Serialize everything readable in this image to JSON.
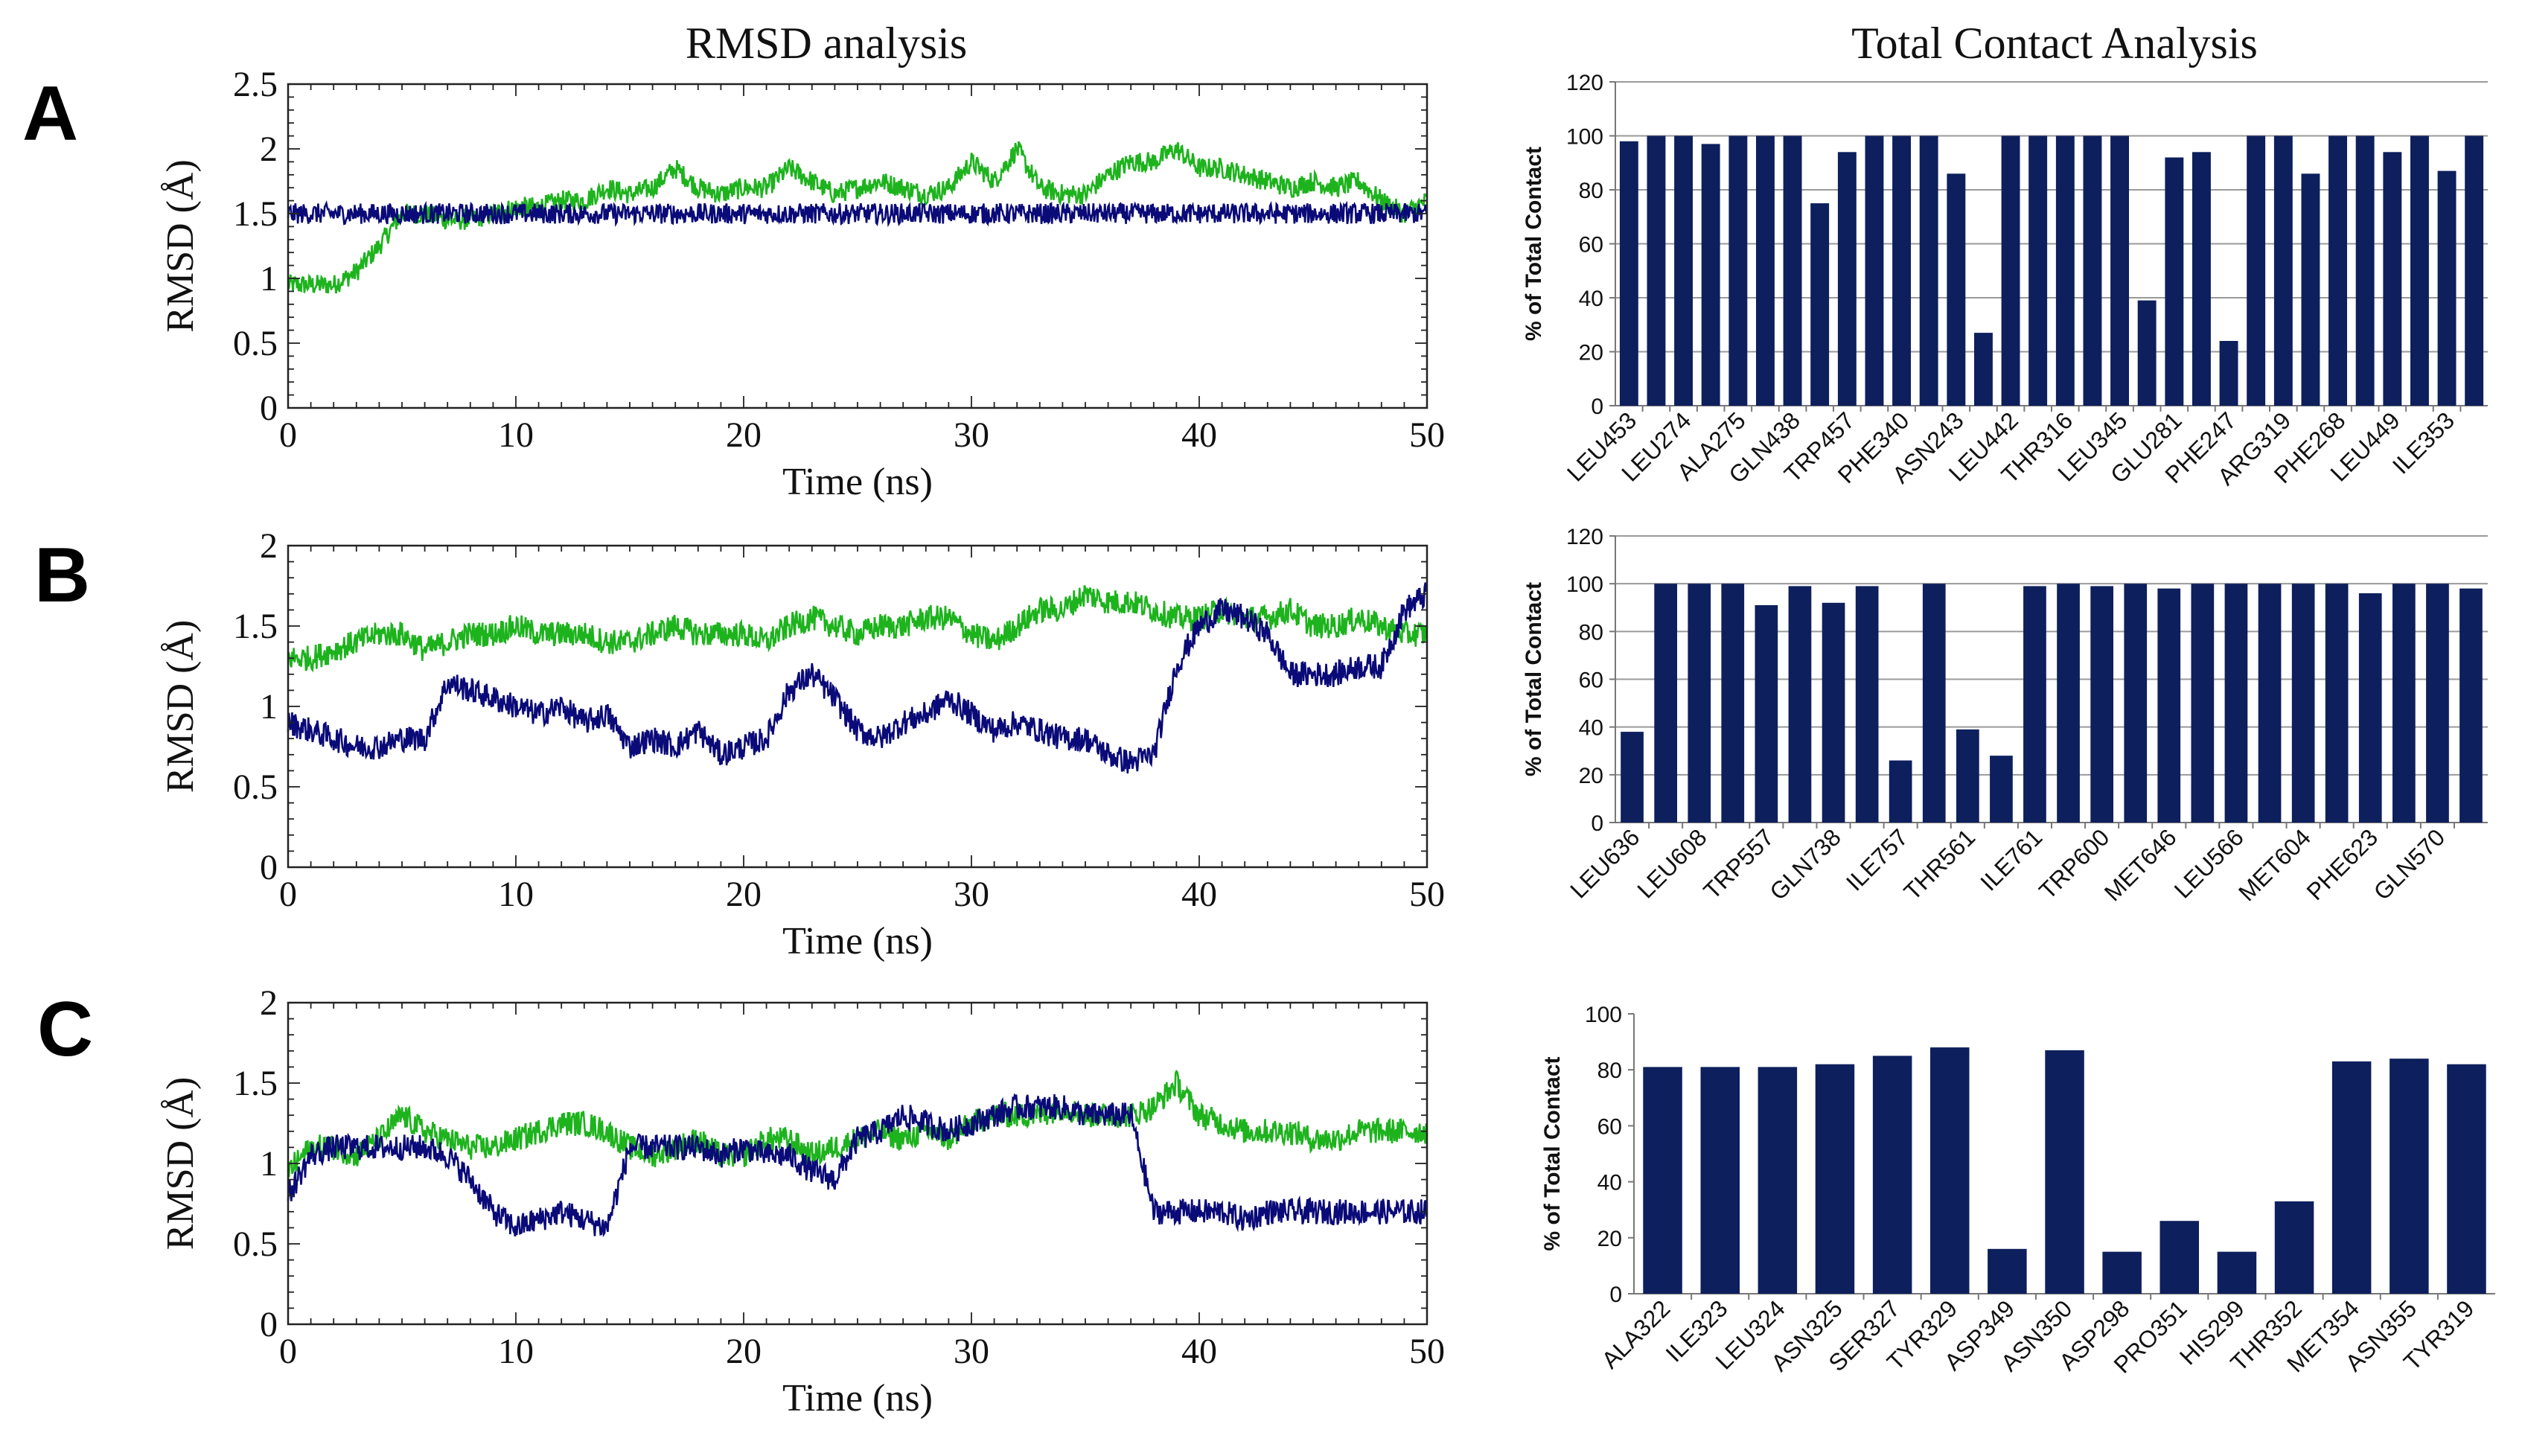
{
  "column_titles": {
    "left": "RMSD analysis",
    "right": "Total Contact Analysis"
  },
  "panel_labels": [
    "A",
    "B",
    "C"
  ],
  "colors": {
    "green_series": "#1db31d",
    "blue_series": "#0a0a78",
    "bar_fill": "#0d1f5c"
  },
  "chart_data": [
    {
      "id": "A-rmsd",
      "type": "line",
      "title": "",
      "xlabel": "Time (ns)",
      "ylabel": "RMSD (Å)",
      "xlim": [
        0,
        50
      ],
      "ylim": [
        0,
        2.5
      ],
      "xticks": [
        0,
        10,
        20,
        30,
        40,
        50
      ],
      "yticks": [
        0,
        0.5,
        1,
        1.5,
        2,
        2.5
      ],
      "ytick_labels": [
        "0",
        "0.5",
        "1",
        "1.5",
        "2",
        "2.5"
      ],
      "grid": false,
      "series": [
        {
          "color": "#1db31d",
          "x": [
            0,
            1,
            2,
            3,
            4,
            5,
            6,
            7,
            8,
            9,
            10,
            11,
            12,
            13,
            14,
            15,
            16,
            17,
            18,
            19,
            20,
            21,
            22,
            23,
            24,
            25,
            26,
            27,
            28,
            29,
            30,
            31,
            32,
            33,
            34,
            35,
            36,
            37,
            38,
            39,
            40,
            41,
            42,
            43,
            44,
            45,
            46,
            47,
            48,
            49,
            50
          ],
          "y": [
            0.95,
            0.95,
            0.95,
            1.05,
            1.25,
            1.5,
            1.5,
            1.45,
            1.45,
            1.5,
            1.55,
            1.55,
            1.6,
            1.6,
            1.7,
            1.65,
            1.7,
            1.85,
            1.7,
            1.65,
            1.7,
            1.7,
            1.85,
            1.75,
            1.65,
            1.7,
            1.75,
            1.7,
            1.65,
            1.7,
            1.9,
            1.75,
            2.0,
            1.7,
            1.65,
            1.65,
            1.8,
            1.9,
            1.9,
            2.0,
            1.85,
            1.85,
            1.8,
            1.75,
            1.7,
            1.75,
            1.7,
            1.75,
            1.6,
            1.5,
            1.6
          ]
        },
        {
          "color": "#0a0a78",
          "x": [
            0,
            1,
            2,
            3,
            4,
            5,
            6,
            7,
            8,
            9,
            10,
            11,
            12,
            13,
            14,
            15,
            16,
            17,
            18,
            19,
            20,
            21,
            22,
            23,
            24,
            25,
            26,
            27,
            28,
            29,
            30,
            31,
            32,
            33,
            34,
            35,
            36,
            37,
            38,
            39,
            40,
            41,
            42,
            43,
            44,
            45,
            46,
            47,
            48,
            49,
            50
          ],
          "y": [
            1.5,
            1.5,
            1.5,
            1.5,
            1.5,
            1.5,
            1.5,
            1.5,
            1.5,
            1.5,
            1.5,
            1.5,
            1.5,
            1.5,
            1.5,
            1.5,
            1.5,
            1.5,
            1.5,
            1.5,
            1.5,
            1.5,
            1.5,
            1.5,
            1.5,
            1.5,
            1.5,
            1.5,
            1.5,
            1.5,
            1.5,
            1.5,
            1.5,
            1.5,
            1.5,
            1.5,
            1.5,
            1.5,
            1.5,
            1.5,
            1.5,
            1.5,
            1.5,
            1.5,
            1.5,
            1.5,
            1.5,
            1.5,
            1.5,
            1.5,
            1.5
          ]
        }
      ]
    },
    {
      "id": "A-contact",
      "type": "bar",
      "title": "",
      "xlabel": "",
      "ylabel": "% of Total Contact",
      "ylim": [
        0,
        120
      ],
      "yticks": [
        0,
        20,
        40,
        60,
        80,
        100,
        120
      ],
      "grid": true,
      "categories": [
        "LEU453",
        "",
        "LEU274",
        "",
        "ALA275",
        "",
        "GLN438",
        "",
        "TRP457",
        "",
        "PHE340",
        "",
        "ASN243",
        "",
        "LEU442",
        "",
        "THR316",
        "",
        "LEU345",
        "",
        "GLU281",
        "",
        "PHE247",
        "",
        "ARG319",
        "",
        "PHE268",
        "",
        "LEU449",
        "",
        "ILE353",
        ""
      ],
      "values": [
        98,
        100,
        100,
        97,
        100,
        100,
        100,
        75,
        94,
        100,
        100,
        100,
        86,
        27,
        100,
        100,
        100,
        100,
        100,
        39,
        92,
        94,
        24,
        100,
        100,
        86,
        100,
        100,
        94,
        100,
        87,
        100
      ]
    },
    {
      "id": "B-rmsd",
      "type": "line",
      "title": "",
      "xlabel": "Time (ns)",
      "ylabel": "RMSD (Å)",
      "xlim": [
        0,
        50
      ],
      "ylim": [
        0,
        2
      ],
      "xticks": [
        0,
        10,
        20,
        30,
        40,
        50
      ],
      "yticks": [
        0,
        0.5,
        1,
        1.5,
        2
      ],
      "ytick_labels": [
        "0",
        "0.5",
        "1",
        "1.5",
        "2"
      ],
      "grid": false,
      "series": [
        {
          "color": "#1db31d",
          "x": [
            0,
            1,
            2,
            3,
            4,
            5,
            6,
            7,
            8,
            9,
            10,
            11,
            12,
            13,
            14,
            15,
            16,
            17,
            18,
            19,
            20,
            21,
            22,
            23,
            24,
            25,
            26,
            27,
            28,
            29,
            30,
            31,
            32,
            33,
            34,
            35,
            36,
            37,
            38,
            39,
            40,
            41,
            42,
            43,
            44,
            45,
            46,
            47,
            48,
            49,
            50
          ],
          "y": [
            1.3,
            1.3,
            1.35,
            1.4,
            1.45,
            1.45,
            1.35,
            1.4,
            1.45,
            1.45,
            1.5,
            1.45,
            1.45,
            1.45,
            1.4,
            1.4,
            1.45,
            1.5,
            1.45,
            1.45,
            1.45,
            1.4,
            1.5,
            1.55,
            1.5,
            1.45,
            1.5,
            1.5,
            1.55,
            1.55,
            1.45,
            1.4,
            1.5,
            1.6,
            1.6,
            1.7,
            1.65,
            1.65,
            1.6,
            1.55,
            1.55,
            1.6,
            1.55,
            1.55,
            1.6,
            1.5,
            1.5,
            1.55,
            1.5,
            1.45,
            1.45
          ]
        },
        {
          "color": "#0a0a78",
          "x": [
            0,
            1,
            2,
            3,
            4,
            5,
            6,
            7,
            8,
            9,
            10,
            11,
            12,
            13,
            14,
            15,
            16,
            17,
            18,
            19,
            20,
            21,
            22,
            23,
            24,
            25,
            26,
            27,
            28,
            29,
            30,
            31,
            32,
            33,
            34,
            35,
            36,
            37,
            38,
            39,
            40,
            41,
            42,
            43,
            44,
            45,
            46,
            47,
            48,
            49,
            50
          ],
          "y": [
            0.9,
            0.85,
            0.8,
            0.75,
            0.75,
            0.8,
            0.8,
            1.15,
            1.1,
            1.05,
            1.0,
            0.95,
            1.0,
            0.9,
            0.95,
            0.75,
            0.8,
            0.75,
            0.85,
            0.7,
            0.75,
            0.8,
            1.1,
            1.2,
            1.05,
            0.85,
            0.8,
            0.9,
            0.95,
            1.05,
            0.95,
            0.85,
            0.9,
            0.85,
            0.8,
            0.8,
            0.7,
            0.65,
            0.7,
            1.25,
            1.5,
            1.6,
            1.55,
            1.45,
            1.2,
            1.2,
            1.2,
            1.25,
            1.25,
            1.6,
            1.7
          ]
        }
      ]
    },
    {
      "id": "B-contact",
      "type": "bar",
      "title": "",
      "xlabel": "",
      "ylabel": "% of Total Contact",
      "ylim": [
        0,
        120
      ],
      "yticks": [
        0,
        20,
        40,
        60,
        80,
        100,
        120
      ],
      "grid": true,
      "categories": [
        "LEU636",
        "",
        "LEU608",
        "",
        "TRP557",
        "",
        "GLN738",
        "",
        "ILE757",
        "",
        "THR561",
        "",
        "ILE761",
        "",
        "TRP600",
        "",
        "MET646",
        "",
        "LEU566",
        "",
        "MET604",
        "",
        "PHE623",
        "",
        "GLN570",
        ""
      ],
      "values": [
        38,
        100,
        100,
        100,
        91,
        99,
        92,
        99,
        26,
        100,
        39,
        28,
        99,
        100,
        99,
        100,
        98,
        100,
        100,
        100,
        100,
        100,
        96,
        100,
        100,
        98
      ]
    },
    {
      "id": "C-rmsd",
      "type": "line",
      "title": "",
      "xlabel": "Time (ns)",
      "ylabel": "RMSD (Å)",
      "xlim": [
        0,
        50
      ],
      "ylim": [
        0,
        2
      ],
      "xticks": [
        0,
        10,
        20,
        30,
        40,
        50
      ],
      "yticks": [
        0,
        0.5,
        1,
        1.5,
        2
      ],
      "ytick_labels": [
        "0",
        "0.5",
        "1",
        "1.5",
        "2"
      ],
      "grid": false,
      "series": [
        {
          "color": "#1db31d",
          "x": [
            0,
            1,
            2,
            3,
            4,
            5,
            6,
            7,
            8,
            9,
            10,
            11,
            12,
            13,
            14,
            15,
            16,
            17,
            18,
            19,
            20,
            21,
            22,
            23,
            24,
            25,
            26,
            27,
            28,
            29,
            30,
            31,
            32,
            33,
            34,
            35,
            36,
            37,
            38,
            39,
            40,
            41,
            42,
            43,
            44,
            45,
            46,
            47,
            48,
            49,
            50
          ],
          "y": [
            0.95,
            1.1,
            1.1,
            1.05,
            1.15,
            1.3,
            1.2,
            1.15,
            1.1,
            1.1,
            1.15,
            1.2,
            1.25,
            1.25,
            1.2,
            1.1,
            1.05,
            1.1,
            1.15,
            1.05,
            1.05,
            1.15,
            1.15,
            1.05,
            1.1,
            1.15,
            1.2,
            1.15,
            1.2,
            1.15,
            1.25,
            1.3,
            1.3,
            1.3,
            1.35,
            1.3,
            1.3,
            1.3,
            1.35,
            1.5,
            1.3,
            1.25,
            1.2,
            1.2,
            1.2,
            1.15,
            1.15,
            1.2,
            1.2,
            1.2,
            1.2
          ]
        },
        {
          "color": "#0a0a78",
          "x": [
            0,
            1,
            2,
            3,
            4,
            5,
            6,
            7,
            8,
            9,
            10,
            11,
            12,
            13,
            14,
            15,
            16,
            17,
            18,
            19,
            20,
            21,
            22,
            23,
            24,
            25,
            26,
            27,
            28,
            29,
            30,
            31,
            32,
            33,
            34,
            35,
            36,
            37,
            38,
            39,
            40,
            41,
            42,
            43,
            44,
            45,
            46,
            47,
            48,
            49,
            50
          ],
          "y": [
            0.8,
            1.05,
            1.1,
            1.1,
            1.1,
            1.1,
            1.1,
            1.05,
            0.9,
            0.7,
            0.6,
            0.65,
            0.7,
            0.65,
            0.6,
            1.1,
            1.1,
            1.1,
            1.1,
            1.05,
            1.1,
            1.05,
            1.05,
            0.95,
            0.9,
            1.15,
            1.2,
            1.3,
            1.25,
            1.2,
            1.25,
            1.3,
            1.35,
            1.35,
            1.35,
            1.3,
            1.3,
            1.3,
            0.7,
            0.7,
            0.7,
            0.7,
            0.65,
            0.7,
            0.7,
            0.7,
            0.7,
            0.7,
            0.7,
            0.7,
            0.7
          ]
        }
      ]
    },
    {
      "id": "C-contact",
      "type": "bar",
      "title": "",
      "xlabel": "",
      "ylabel": "% of Total Contact",
      "ylim": [
        0,
        100
      ],
      "yticks": [
        0,
        20,
        40,
        60,
        80,
        100
      ],
      "grid": false,
      "categories": [
        "ALA322",
        "ILE323",
        "LEU324",
        "ASN325",
        "SER327",
        "TYR329",
        "ASP349",
        "ASN350",
        "ASP298",
        "PRO351",
        "HIS299",
        "THR352",
        "MET354",
        "ASN355",
        "TYR319"
      ],
      "values": [
        81,
        81,
        81,
        82,
        85,
        88,
        16,
        87,
        15,
        26,
        15,
        33,
        83,
        84,
        82
      ]
    }
  ]
}
